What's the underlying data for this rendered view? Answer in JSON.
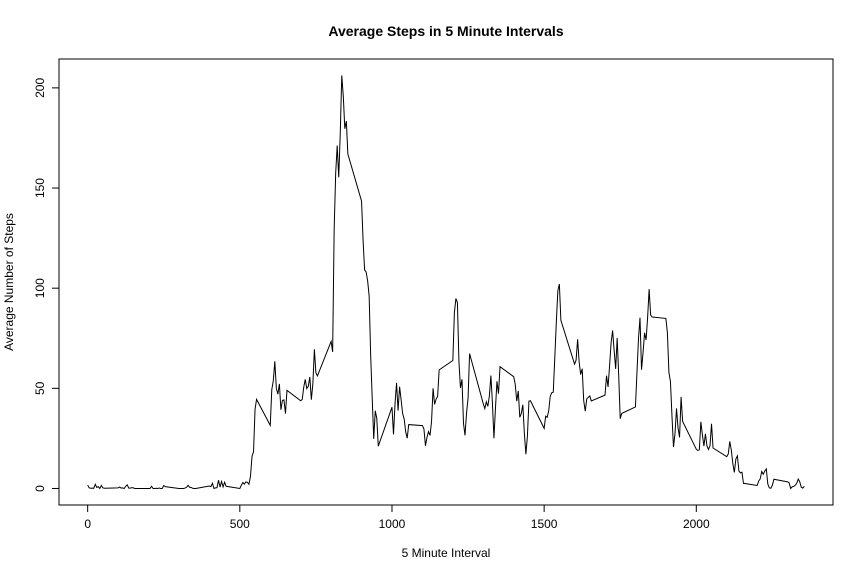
{
  "chart_data": {
    "type": "line",
    "title": "Average Steps in 5 Minute Intervals",
    "x_label": "5 Minute Interval",
    "y_label": "Average Number of Steps",
    "color": "#000000",
    "xlim": [
      -94.2,
      2449.2
    ],
    "ylim": [
      -8.25,
      214.42
    ],
    "xticks": [
      0,
      500,
      1000,
      1500,
      2000
    ],
    "yticks": [
      0,
      50,
      100,
      150,
      200
    ],
    "x": [
      0,
      5,
      10,
      15,
      20,
      25,
      30,
      35,
      40,
      45,
      50,
      55,
      100,
      105,
      110,
      115,
      120,
      125,
      130,
      135,
      140,
      145,
      150,
      155,
      200,
      205,
      210,
      215,
      220,
      225,
      230,
      235,
      240,
      245,
      250,
      255,
      300,
      305,
      310,
      315,
      320,
      325,
      330,
      335,
      340,
      345,
      350,
      355,
      400,
      405,
      410,
      415,
      420,
      425,
      430,
      435,
      440,
      445,
      450,
      455,
      500,
      505,
      510,
      515,
      520,
      525,
      530,
      535,
      540,
      545,
      550,
      555,
      600,
      605,
      610,
      615,
      620,
      625,
      630,
      635,
      640,
      645,
      650,
      655,
      700,
      705,
      710,
      715,
      720,
      725,
      730,
      735,
      740,
      745,
      750,
      755,
      800,
      805,
      810,
      815,
      820,
      825,
      830,
      835,
      840,
      845,
      850,
      855,
      900,
      905,
      910,
      915,
      920,
      925,
      930,
      935,
      940,
      945,
      950,
      955,
      1000,
      1005,
      1010,
      1015,
      1020,
      1025,
      1030,
      1035,
      1040,
      1045,
      1050,
      1055,
      1100,
      1105,
      1110,
      1115,
      1120,
      1125,
      1130,
      1135,
      1140,
      1145,
      1150,
      1155,
      1200,
      1205,
      1210,
      1215,
      1220,
      1225,
      1230,
      1235,
      1240,
      1245,
      1250,
      1255,
      1300,
      1305,
      1310,
      1315,
      1320,
      1325,
      1330,
      1335,
      1340,
      1345,
      1350,
      1355,
      1400,
      1405,
      1410,
      1415,
      1420,
      1425,
      1430,
      1435,
      1440,
      1445,
      1450,
      1455,
      1500,
      1505,
      1510,
      1515,
      1520,
      1525,
      1530,
      1535,
      1540,
      1545,
      1550,
      1555,
      1600,
      1605,
      1610,
      1615,
      1620,
      1625,
      1630,
      1635,
      1640,
      1645,
      1650,
      1655,
      1700,
      1705,
      1710,
      1715,
      1720,
      1725,
      1730,
      1735,
      1740,
      1745,
      1750,
      1755,
      1800,
      1805,
      1810,
      1815,
      1820,
      1825,
      1830,
      1835,
      1840,
      1845,
      1850,
      1855,
      1900,
      1905,
      1910,
      1915,
      1920,
      1925,
      1930,
      1935,
      1940,
      1945,
      1950,
      1955,
      2000,
      2005,
      2010,
      2015,
      2020,
      2025,
      2030,
      2035,
      2040,
      2045,
      2050,
      2055,
      2100,
      2105,
      2110,
      2115,
      2120,
      2125,
      2130,
      2135,
      2140,
      2145,
      2150,
      2155,
      2200,
      2205,
      2210,
      2215,
      2220,
      2225,
      2230,
      2235,
      2240,
      2245,
      2250,
      2255,
      2300,
      2305,
      2310,
      2315,
      2320,
      2325,
      2330,
      2335,
      2340,
      2345,
      2350,
      2355
    ],
    "values": [
      1.7,
      0.3,
      0.1,
      0.2,
      0.1,
      2.1,
      0.5,
      0.9,
      0,
      1.5,
      0.3,
      0.1,
      0.3,
      0.7,
      0.2,
      0.3,
      0,
      1.1,
      1.8,
      0.2,
      0.2,
      0.4,
      0.3,
      0,
      0,
      0,
      1.1,
      0,
      0,
      0.1,
      0,
      0.2,
      0,
      0,
      1.5,
      0.9,
      0,
      0,
      0,
      0,
      0.2,
      0.6,
      1.6,
      0.6,
      0.5,
      0.1,
      0,
      0,
      1.2,
      0.9,
      2.6,
      0,
      0.3,
      0.4,
      4.1,
      0.7,
      3.5,
      0.8,
      3.1,
      1.1,
      0,
      1.6,
      3.0,
      2.2,
      3.3,
      3.0,
      2.1,
      6.1,
      16.0,
      18.3,
      39.5,
      44.5,
      31.5,
      49.3,
      53.8,
      63.5,
      50.0,
      47.1,
      52.2,
      39.3,
      44.0,
      44.2,
      37.4,
      49.0,
      43.8,
      44.4,
      50.5,
      54.5,
      49.9,
      51.0,
      55.7,
      44.3,
      52.3,
      69.5,
      57.8,
      56.2,
      73.4,
      68.2,
      129.4,
      157.5,
      171.2,
      155.4,
      177.3,
      206.2,
      195.9,
      179.6,
      183.4,
      167.0,
      143.5,
      124.0,
      109.1,
      108.1,
      103.7,
      96.0,
      66.2,
      45.2,
      24.8,
      38.8,
      35.0,
      21.1,
      40.6,
      27.0,
      42.4,
      52.7,
      38.9,
      50.8,
      44.3,
      37.4,
      34.7,
      28.3,
      25.1,
      31.9,
      31.4,
      29.7,
      21.3,
      25.5,
      28.4,
      26.5,
      33.4,
      50.0,
      42.0,
      44.6,
      46.0,
      59.2,
      63.9,
      87.7,
      94.8,
      92.8,
      63.4,
      50.2,
      54.5,
      32.4,
      26.5,
      37.7,
      45.1,
      67.3,
      42.3,
      39.9,
      43.3,
      41.0,
      46.2,
      56.4,
      42.8,
      25.1,
      40.0,
      53.5,
      47.3,
      60.8,
      55.8,
      52.0,
      43.6,
      48.7,
      35.5,
      37.5,
      41.8,
      27.5,
      17.1,
      26.1,
      43.6,
      43.8,
      30.0,
      36.1,
      35.5,
      38.8,
      46.0,
      47.8,
      48.1,
      65.3,
      82.9,
      98.7,
      102.1,
      84.0,
      62.1,
      64.1,
      74.5,
      63.2,
      56.9,
      59.8,
      43.9,
      38.6,
      44.7,
      45.5,
      46.2,
      43.7,
      46.6,
      56.3,
      50.7,
      61.2,
      72.7,
      78.9,
      68.9,
      59.7,
      75.1,
      56.5,
      34.8,
      37.5,
      40.7,
      58.0,
      74.7,
      85.3,
      59.3,
      67.8,
      77.7,
      74.2,
      85.3,
      99.5,
      86.6,
      85.6,
      84.9,
      77.8,
      58.0,
      53.4,
      36.3,
      20.7,
      27.4,
      40.0,
      30.2,
      25.5,
      45.7,
      33.5,
      19.6,
      19.0,
      19.3,
      33.3,
      26.8,
      21.2,
      27.3,
      21.3,
      19.5,
      21.3,
      32.3,
      20.2,
      15.9,
      17.2,
      23.5,
      19.2,
      12.5,
      8.0,
      14.7,
      16.3,
      8.7,
      7.8,
      8.1,
      2.6,
      1.5,
      3.7,
      4.8,
      8.5,
      7.1,
      8.7,
      9.8,
      2.2,
      0.3,
      0.1,
      1.6,
      4.6,
      3.3,
      2.8,
      0,
      0.8,
      1.0,
      1.6,
      2.6,
      4.7,
      3.3,
      0.6,
      0.2,
      1.1
    ]
  }
}
